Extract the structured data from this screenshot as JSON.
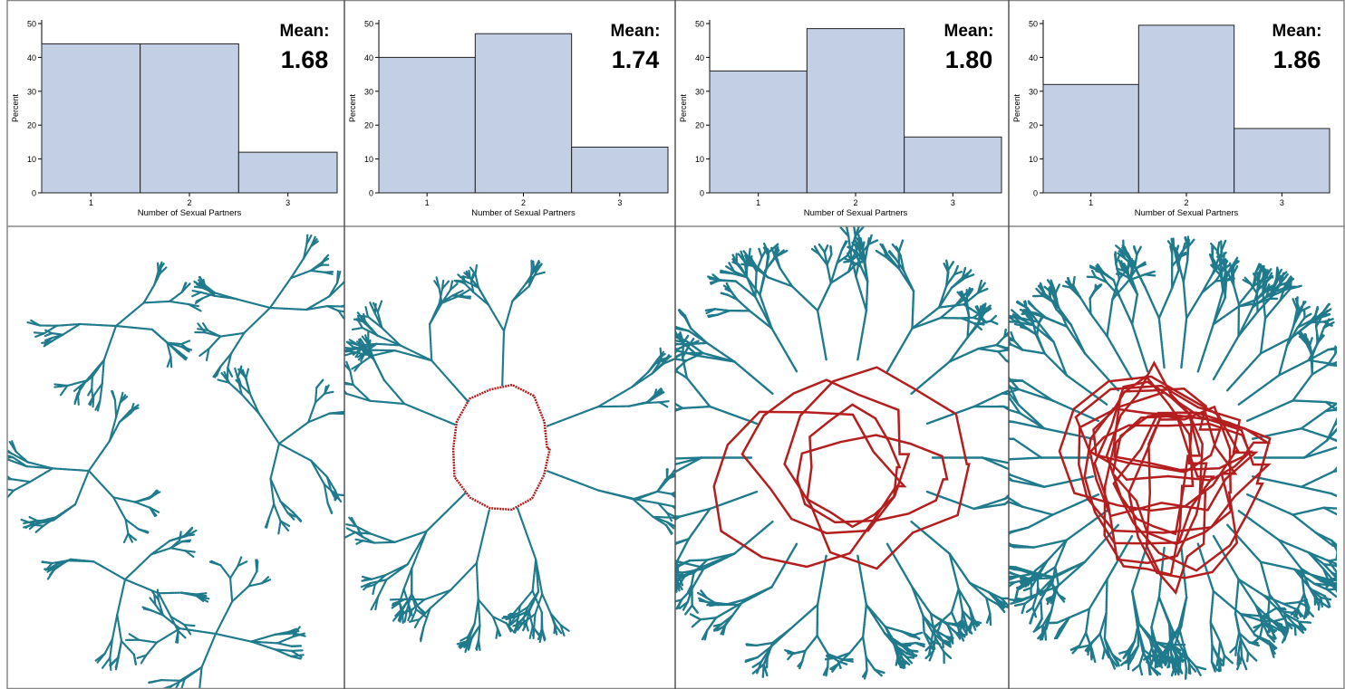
{
  "chart_data": [
    {
      "type": "bar",
      "categories": [
        "1",
        "2",
        "3"
      ],
      "values": [
        44,
        44,
        12
      ],
      "xlabel": "Number of Sexual Partners",
      "ylabel": "Percent",
      "ylim": [
        0,
        50
      ],
      "yticks": [
        0,
        10,
        20,
        30,
        40,
        50
      ],
      "mean_title": "Mean:",
      "mean_value": "1.68",
      "bar_color": "#c3cfe4"
    },
    {
      "type": "bar",
      "categories": [
        "1",
        "2",
        "3"
      ],
      "values": [
        40,
        47,
        13.5
      ],
      "xlabel": "Number of Sexual Partners",
      "ylabel": "Percent",
      "ylim": [
        0,
        50
      ],
      "yticks": [
        0,
        10,
        20,
        30,
        40,
        50
      ],
      "mean_title": "Mean:",
      "mean_value": "1.74",
      "bar_color": "#c3cfe4"
    },
    {
      "type": "bar",
      "categories": [
        "1",
        "2",
        "3"
      ],
      "values": [
        36,
        48.5,
        16.5
      ],
      "xlabel": "Number of Sexual Partners",
      "ylabel": "Percent",
      "ylim": [
        0,
        50
      ],
      "yticks": [
        0,
        10,
        20,
        30,
        40,
        50
      ],
      "mean_title": "Mean:",
      "mean_value": "1.80",
      "bar_color": "#c3cfe4"
    },
    {
      "type": "bar",
      "categories": [
        "1",
        "2",
        "3"
      ],
      "values": [
        32,
        49.5,
        19
      ],
      "xlabel": "Number of Sexual Partners",
      "ylabel": "Percent",
      "ylim": [
        0,
        50
      ],
      "yticks": [
        0,
        10,
        20,
        30,
        40,
        50
      ],
      "mean_title": "Mean:",
      "mean_value": "1.86",
      "bar_color": "#c3cfe4"
    }
  ],
  "network_colors": {
    "tree": "#1f7a8c",
    "cycle": "#b41e1e"
  },
  "networks": [
    {
      "style": "separate-trees"
    },
    {
      "style": "single-cycle"
    },
    {
      "style": "few-cycles"
    },
    {
      "style": "dense-core"
    }
  ]
}
